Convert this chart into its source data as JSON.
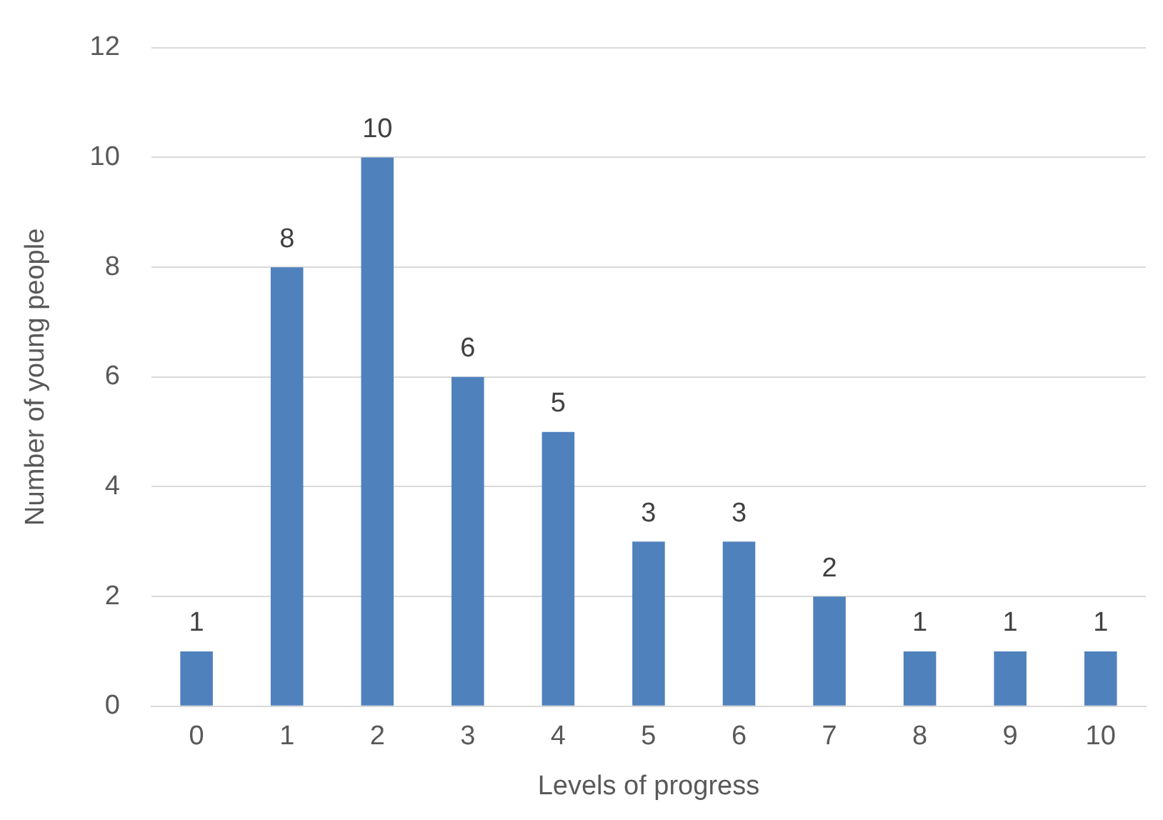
{
  "chart_data": {
    "type": "bar",
    "xlabel": "Levels of progress",
    "ylabel": "Number of young people",
    "categories": [
      "0",
      "1",
      "2",
      "3",
      "4",
      "5",
      "6",
      "7",
      "8",
      "9",
      "10"
    ],
    "values": [
      1,
      8,
      10,
      6,
      5,
      3,
      3,
      2,
      1,
      1,
      1
    ],
    "color": "#4f81bd",
    "ylim": [
      0,
      12
    ],
    "yticks": [
      0,
      2,
      4,
      6,
      8,
      10,
      12
    ],
    "grid": "y",
    "data_labels": true,
    "legend": false
  }
}
